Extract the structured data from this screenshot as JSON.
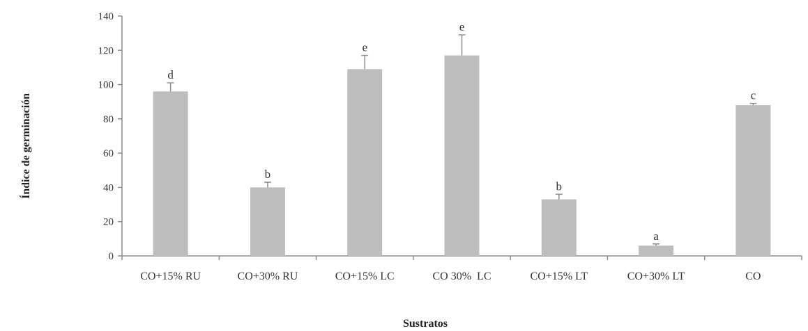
{
  "chart_data": {
    "type": "bar",
    "xlabel": "Sustratos",
    "ylabel": "Índice de germinación",
    "ylim": [
      0,
      140
    ],
    "yticks": [
      "0",
      "20",
      "40",
      "60",
      "80",
      "100",
      "120",
      "140"
    ],
    "categories": [
      "CO+15% RU",
      "CO+30% RU",
      "CO+15% LC",
      "CO 30%  LC",
      "CO+15% LT",
      "CO+30% LT",
      "CO"
    ],
    "values": [
      96,
      40,
      109,
      117,
      33,
      6,
      88
    ],
    "errors": [
      5,
      3,
      8,
      12,
      3,
      1,
      1
    ],
    "significance_letters": [
      "d",
      "b",
      "e",
      "e",
      "b",
      "a",
      "c"
    ],
    "grid": false,
    "legend": "none",
    "colors": {
      "bar": "#bdbdbd",
      "axis": "#8c8c8c",
      "error_bar": "#8c8c8c",
      "text": "#333333"
    }
  }
}
